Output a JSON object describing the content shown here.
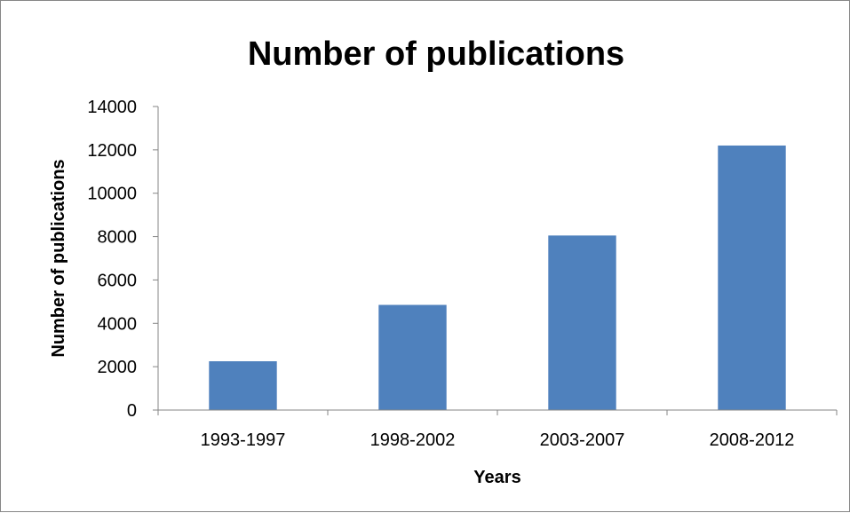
{
  "chart_data": {
    "type": "bar",
    "title": "Number of publications",
    "xlabel": "Years",
    "ylabel": "Number of publications",
    "categories": [
      "1993-1997",
      "1998-2002",
      "2003-2007",
      "2008-2012"
    ],
    "values": [
      2250,
      4850,
      8050,
      12200
    ],
    "ylim": [
      0,
      14000
    ],
    "yticks": [
      "0",
      "2000",
      "4000",
      "6000",
      "8000",
      "10000",
      "12000",
      "14000"
    ],
    "grid": false,
    "legend": "none",
    "bar_color": "#4F81BD"
  }
}
